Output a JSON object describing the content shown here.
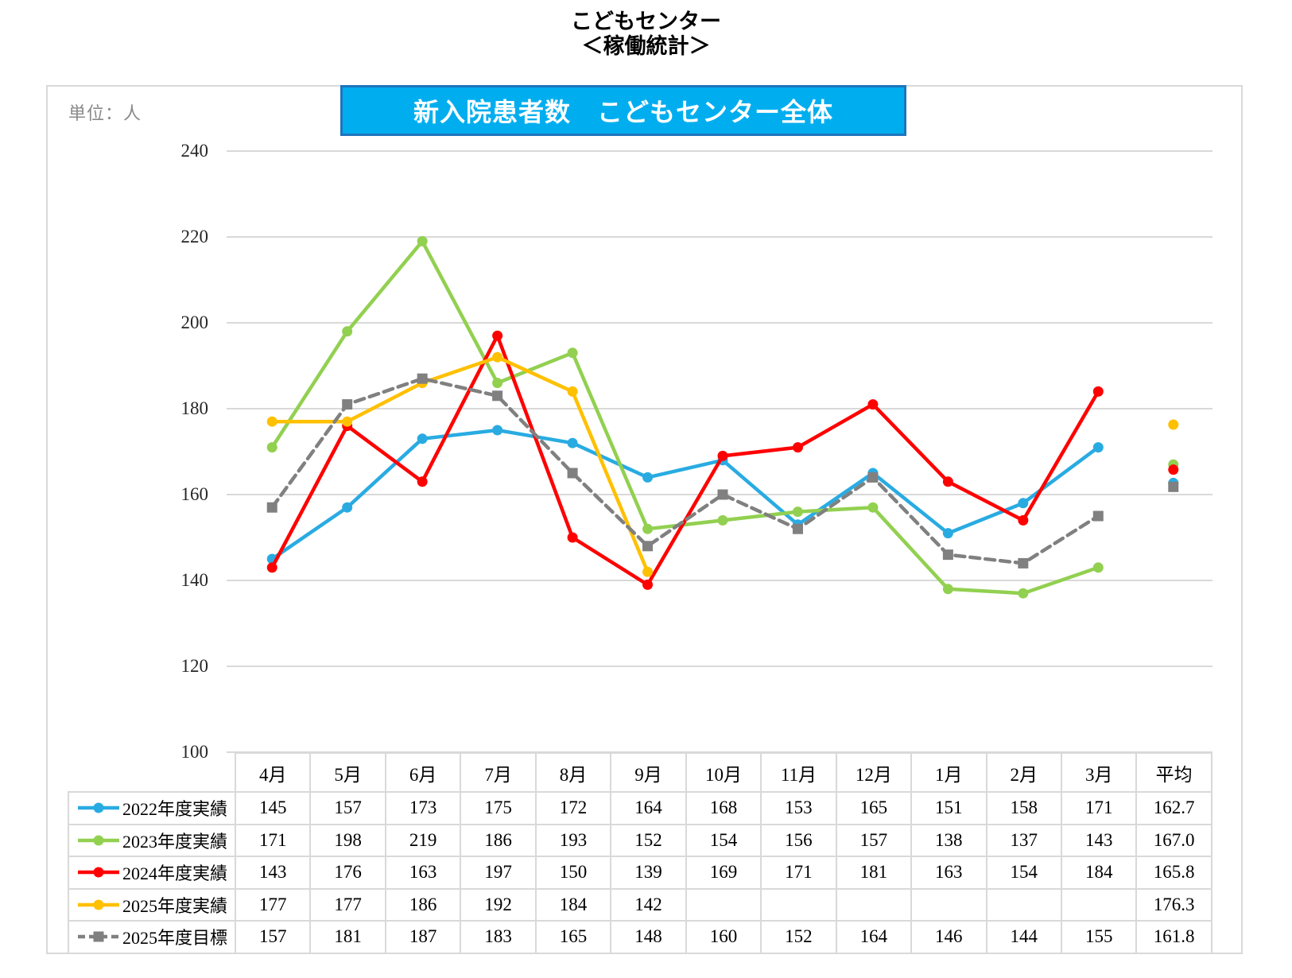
{
  "page_title": {
    "line1": "こどもセンター",
    "line2": "＜稼働統計＞"
  },
  "widget": {
    "unit_label": "単位：人",
    "banner_title": "新入院患者数　こどもセンター全体"
  },
  "colors": {
    "banner_bg": "#00AEEF",
    "banner_border": "#1C75BC",
    "grid": "#D9D9D9",
    "widget_border": "#D9D9D9"
  },
  "chart_data": {
    "type": "line",
    "categories": [
      "4月",
      "5月",
      "6月",
      "7月",
      "8月",
      "9月",
      "10月",
      "11月",
      "12月",
      "1月",
      "2月",
      "3月"
    ],
    "average_category": "平均",
    "ylim": [
      100,
      240
    ],
    "y_ticks": [
      240,
      220,
      200,
      180,
      160,
      140,
      120,
      100
    ],
    "grid": true,
    "legend_position": "table-left",
    "series": [
      {
        "name": "2022年度実績",
        "color": "#29ABE2",
        "line": "solid",
        "marker": "circle",
        "values": [
          145,
          157,
          173,
          175,
          172,
          164,
          168,
          153,
          165,
          151,
          158,
          171
        ],
        "average": 162.7
      },
      {
        "name": "2023年度実績",
        "color": "#92D050",
        "line": "solid",
        "marker": "circle",
        "values": [
          171,
          198,
          219,
          186,
          193,
          152,
          154,
          156,
          157,
          138,
          137,
          143
        ],
        "average": 167.0
      },
      {
        "name": "2024年度実績",
        "color": "#FF0000",
        "line": "solid",
        "marker": "circle",
        "values": [
          143,
          176,
          163,
          197,
          150,
          139,
          169,
          171,
          181,
          163,
          154,
          184
        ],
        "average": 165.8
      },
      {
        "name": "2025年度実績",
        "color": "#FFC000",
        "line": "solid",
        "marker": "circle",
        "values": [
          177,
          177,
          186,
          192,
          184,
          142,
          null,
          null,
          null,
          null,
          null,
          null
        ],
        "average": 176.3
      },
      {
        "name": "2025年度目標",
        "color": "#808080",
        "line": "dashed",
        "marker": "square",
        "values": [
          157,
          181,
          187,
          183,
          165,
          148,
          160,
          152,
          164,
          146,
          144,
          155
        ],
        "average": 161.8
      }
    ]
  },
  "table": {
    "col_headers": [
      "4月",
      "5月",
      "6月",
      "7月",
      "8月",
      "9月",
      "10月",
      "11月",
      "12月",
      "1月",
      "2月",
      "3月",
      "平均"
    ],
    "rows": [
      {
        "label": "2022年度実績",
        "cells": [
          "145",
          "157",
          "173",
          "175",
          "172",
          "164",
          "168",
          "153",
          "165",
          "151",
          "158",
          "171",
          "162.7"
        ]
      },
      {
        "label": "2023年度実績",
        "cells": [
          "171",
          "198",
          "219",
          "186",
          "193",
          "152",
          "154",
          "156",
          "157",
          "138",
          "137",
          "143",
          "167.0"
        ]
      },
      {
        "label": "2024年度実績",
        "cells": [
          "143",
          "176",
          "163",
          "197",
          "150",
          "139",
          "169",
          "171",
          "181",
          "163",
          "154",
          "184",
          "165.8"
        ]
      },
      {
        "label": "2025年度実績",
        "cells": [
          "177",
          "177",
          "186",
          "192",
          "184",
          "142",
          "",
          "",
          "",
          "",
          "",
          "",
          "176.3"
        ]
      },
      {
        "label": "2025年度目標",
        "cells": [
          "157",
          "181",
          "187",
          "183",
          "165",
          "148",
          "160",
          "152",
          "164",
          "146",
          "144",
          "155",
          "161.8"
        ]
      }
    ]
  }
}
